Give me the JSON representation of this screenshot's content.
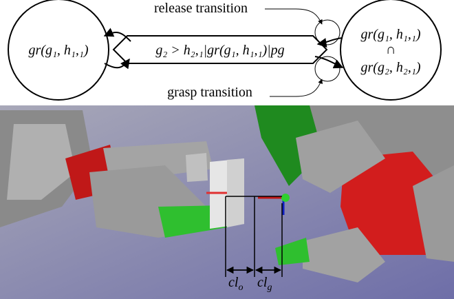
{
  "diagram": {
    "release_label": "release transition",
    "grasp_label": "grasp transition",
    "nodes": [
      {
        "label": "gr(g₁, h₁,₁)"
      },
      {
        "label": "g₂ > h₂,₁|gr(g₁, h₁,₁)|pg"
      },
      {
        "label_top": "gr(g₁, h₁,₁)",
        "operator": "∩",
        "label_bottom": "gr(g₂, h₂,₁)"
      }
    ],
    "clearances": [
      {
        "main": "cl",
        "sub": "o"
      },
      {
        "main": "cl",
        "sub": "g"
      }
    ]
  }
}
